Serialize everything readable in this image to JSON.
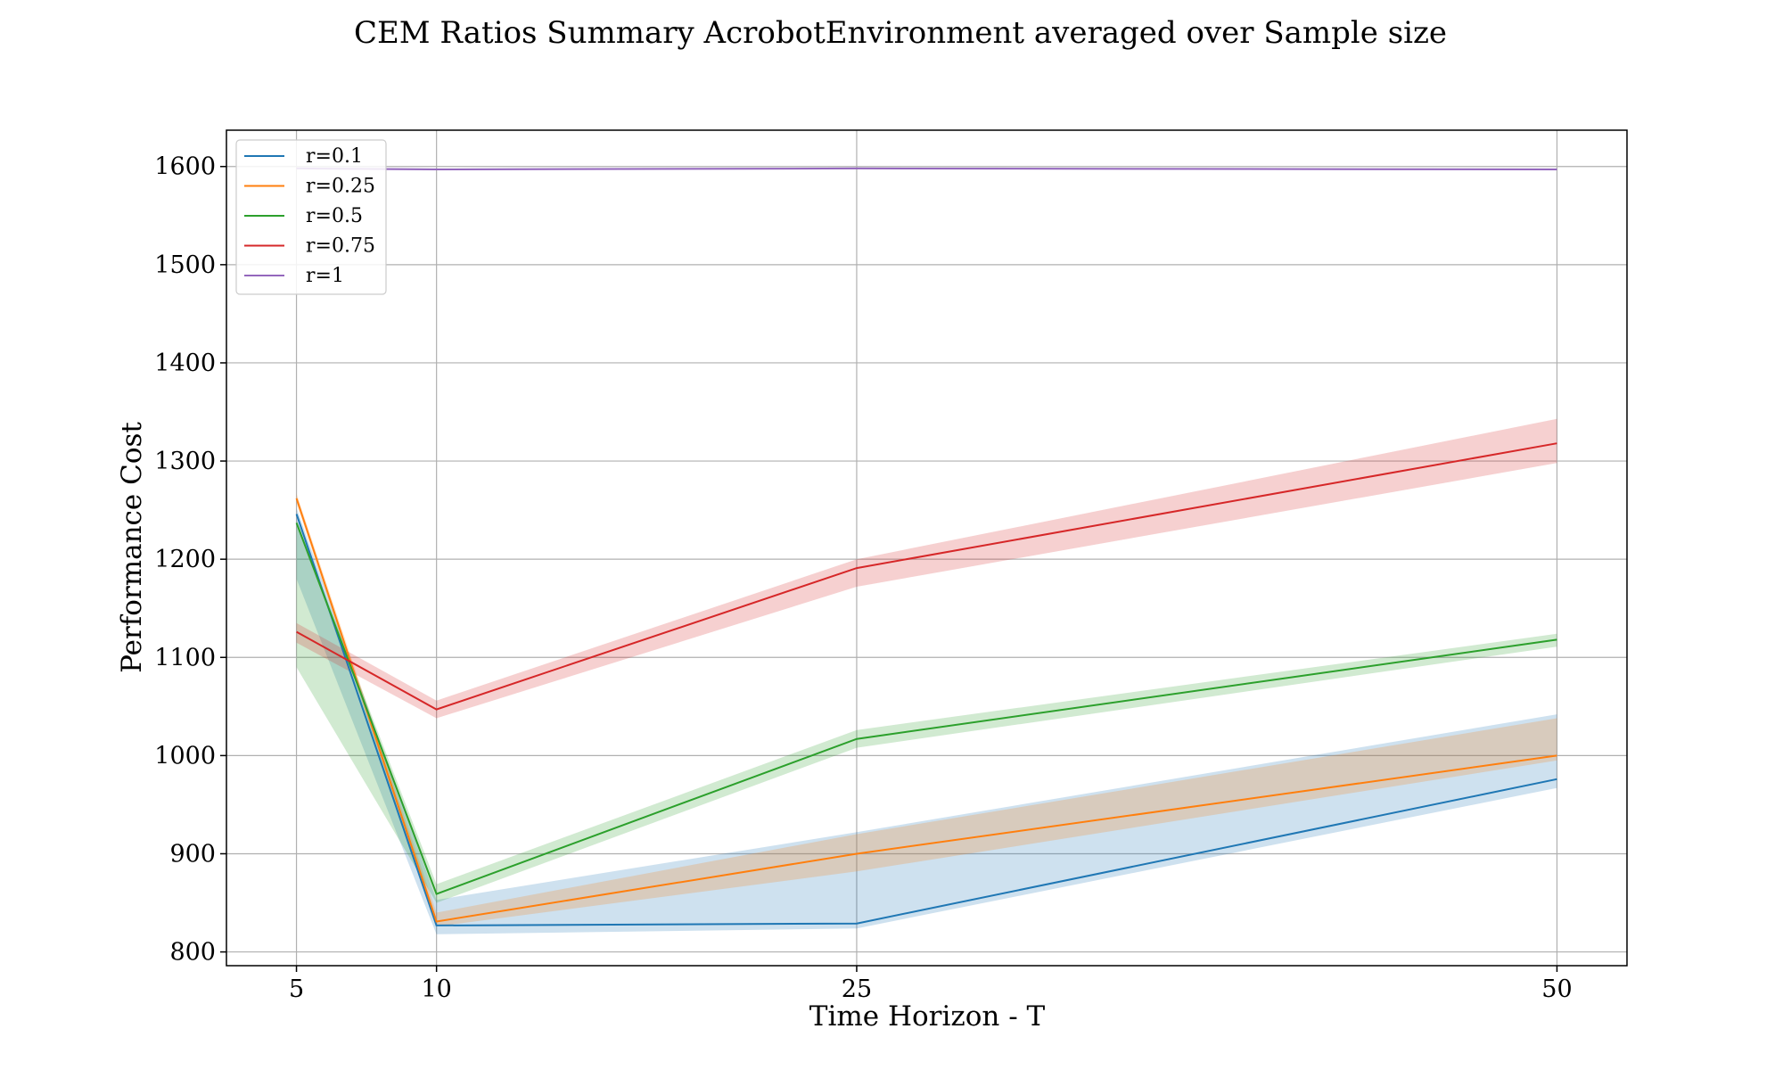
{
  "chart_data": {
    "type": "line",
    "title": "CEM Ratios Summary AcrobotEnvironment averaged over Sample size",
    "xlabel": "Time Horizon - T",
    "ylabel": "Performance Cost",
    "x": [
      5,
      10,
      25,
      50
    ],
    "x_ticks": [
      5,
      10,
      25,
      50
    ],
    "y_ticks": [
      800,
      900,
      1000,
      1100,
      1200,
      1300,
      1400,
      1500,
      1600
    ],
    "xlim": [
      2.5,
      52.5
    ],
    "ylim": [
      786,
      1637
    ],
    "grid": true,
    "legend_position": "top-left",
    "series": [
      {
        "name": "r=0.1",
        "color": "#1f77b4",
        "values": [
          1246,
          827,
          829,
          976
        ],
        "lower": [
          1180,
          818,
          824,
          967
        ],
        "upper": [
          1252,
          853,
          922,
          1042
        ]
      },
      {
        "name": "r=0.25",
        "color": "#ff7f0e",
        "values": [
          1262,
          831,
          900,
          1000
        ],
        "lower": [
          1257,
          826,
          882,
          995
        ],
        "upper": [
          1267,
          840,
          920,
          1038
        ]
      },
      {
        "name": "r=0.5",
        "color": "#2ca02c",
        "values": [
          1237,
          859,
          1017,
          1118
        ],
        "lower": [
          1090,
          850,
          1008,
          1111
        ],
        "upper": [
          1240,
          869,
          1026,
          1124
        ]
      },
      {
        "name": "r=0.75",
        "color": "#d62728",
        "values": [
          1126,
          1047,
          1191,
          1318
        ],
        "lower": [
          1115,
          1038,
          1172,
          1298
        ],
        "upper": [
          1135,
          1056,
          1200,
          1343
        ]
      },
      {
        "name": "r=1",
        "color": "#9467bd",
        "values": [
          1598,
          1597,
          1598,
          1597
        ],
        "lower": [
          1597,
          1596,
          1597,
          1596
        ],
        "upper": [
          1599,
          1598,
          1599,
          1598
        ]
      }
    ]
  }
}
